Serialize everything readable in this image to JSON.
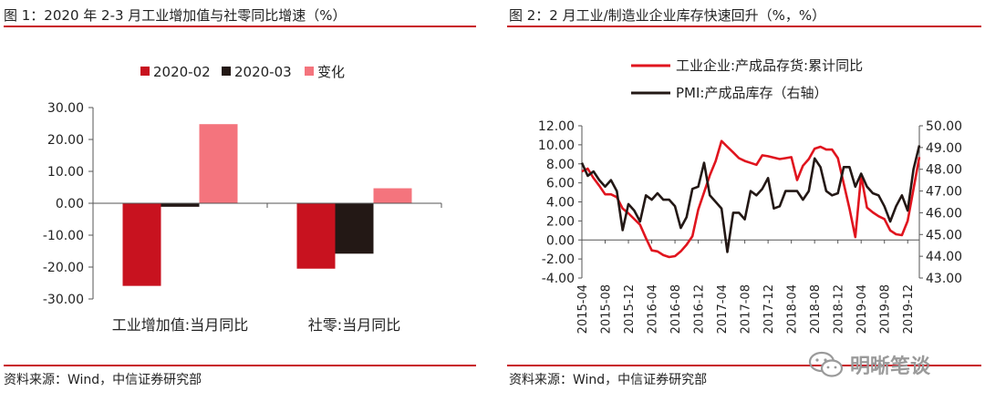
{
  "chart_data": [
    {
      "type": "bar",
      "title": "图 1：2020 年 2-3 月工业增加值与社零同比增速（%）",
      "source": "资料来源：Wind，中信证券研究部",
      "categories": [
        "工业增加值:当月同比",
        "社零:当月同比"
      ],
      "series": [
        {
          "name": "2020-02",
          "color": "#c8121f",
          "values": [
            -25.9,
            -20.5
          ]
        },
        {
          "name": "2020-03",
          "color": "#231815",
          "values": [
            -1.1,
            -15.8
          ]
        },
        {
          "name": "变化",
          "color": "#f4747d",
          "values": [
            24.8,
            4.7
          ]
        }
      ],
      "ylim": [
        -30,
        30
      ],
      "yticks": [
        "30.00",
        "20.00",
        "10.00",
        "0.00",
        "-10.00",
        "-20.00",
        "-30.00"
      ],
      "legend": "top"
    },
    {
      "type": "line",
      "title": "图 2：2 月工业/制造业企业库存快速回升（%，%）",
      "source": "资料来源：Wind，中信证券研究部",
      "xticks": [
        "2015-04",
        "2015-08",
        "2015-12",
        "2016-04",
        "2016-08",
        "2016-12",
        "2017-04",
        "2017-08",
        "2017-12",
        "2018-04",
        "2018-08",
        "2018-12",
        "2019-04",
        "2019-08",
        "2019-12"
      ],
      "ylim_left": [
        -4,
        12
      ],
      "yticks_left": [
        "12.00",
        "10.00",
        "8.00",
        "6.00",
        "4.00",
        "2.00",
        "0.00",
        "-2.00",
        "-4.00"
      ],
      "ylim_right": [
        43,
        50
      ],
      "yticks_right": [
        "50.00",
        "49.00",
        "48.00",
        "47.00",
        "46.00",
        "45.00",
        "44.00",
        "43.00"
      ],
      "legend": "top-left",
      "series": [
        {
          "name": "工业企业:产成品存货:累计同比",
          "color": "#e0141e",
          "axis": "left",
          "x": [
            "2015-04",
            "2015-05",
            "2015-06",
            "2015-07",
            "2015-08",
            "2015-09",
            "2015-10",
            "2015-11",
            "2015-12",
            "2016-02",
            "2016-03",
            "2016-04",
            "2016-05",
            "2016-06",
            "2016-07",
            "2016-08",
            "2016-09",
            "2016-10",
            "2016-11",
            "2016-12",
            "2017-02",
            "2017-03",
            "2017-04",
            "2017-05",
            "2017-06",
            "2017-07",
            "2017-08",
            "2017-09",
            "2017-10",
            "2017-11",
            "2017-12",
            "2018-02",
            "2018-03",
            "2018-04",
            "2018-05",
            "2018-06",
            "2018-07",
            "2018-08",
            "2018-09",
            "2018-10",
            "2018-11",
            "2018-12",
            "2019-02",
            "2019-03",
            "2019-04",
            "2019-05",
            "2019-06",
            "2019-07",
            "2019-08",
            "2019-09",
            "2019-10",
            "2019-11",
            "2019-12",
            "2020-02"
          ],
          "values": [
            7.2,
            7.5,
            6.5,
            5.7,
            4.8,
            4.8,
            4.5,
            3.3,
            2.8,
            1.6,
            0.2,
            -1.1,
            -1.2,
            -1.6,
            -1.8,
            -1.7,
            -1.2,
            -0.5,
            0.4,
            3.2,
            6.8,
            8.3,
            10.4,
            9.8,
            9.2,
            8.6,
            8.3,
            8.1,
            7.9,
            8.9,
            8.8,
            8.5,
            8.6,
            8.7,
            6.3,
            7.8,
            8.5,
            9.6,
            9.8,
            9.5,
            9.5,
            8.6,
            3.3,
            0.3,
            6.8,
            3.4,
            2.9,
            2.5,
            2.2,
            1.0,
            0.6,
            0.5,
            2.0,
            8.7
          ]
        },
        {
          "name": "PMI:产成品库存（右轴）",
          "color": "#231815",
          "axis": "right",
          "x": [
            "2015-04",
            "2015-05",
            "2015-06",
            "2015-07",
            "2015-08",
            "2015-09",
            "2015-10",
            "2015-11",
            "2015-12",
            "2016-01",
            "2016-02",
            "2016-03",
            "2016-04",
            "2016-05",
            "2016-06",
            "2016-07",
            "2016-08",
            "2016-09",
            "2016-10",
            "2016-11",
            "2016-12",
            "2017-01",
            "2017-02",
            "2017-03",
            "2017-04",
            "2017-05",
            "2017-06",
            "2017-07",
            "2017-08",
            "2017-09",
            "2017-10",
            "2017-11",
            "2017-12",
            "2018-01",
            "2018-02",
            "2018-03",
            "2018-04",
            "2018-05",
            "2018-06",
            "2018-07",
            "2018-08",
            "2018-09",
            "2018-10",
            "2018-11",
            "2018-12",
            "2019-01",
            "2019-02",
            "2019-03",
            "2019-04",
            "2019-05",
            "2019-06",
            "2019-07",
            "2019-08",
            "2019-09",
            "2019-10",
            "2019-11",
            "2019-12",
            "2020-01",
            "2020-02"
          ],
          "values": [
            48.3,
            47.7,
            47.9,
            47.5,
            47.2,
            47.5,
            47.0,
            45.2,
            46.4,
            46.1,
            45.6,
            46.8,
            46.6,
            46.9,
            46.6,
            46.6,
            46.3,
            45.3,
            45.8,
            47.1,
            47.2,
            48.3,
            46.8,
            46.5,
            46.2,
            44.2,
            46.0,
            46.0,
            45.7,
            47.0,
            46.8,
            47.1,
            47.6,
            46.2,
            46.3,
            47.0,
            47.0,
            47.0,
            46.6,
            47.0,
            48.5,
            48.1,
            47.0,
            46.8,
            46.9,
            48.1,
            48.1,
            47.2,
            47.8,
            47.2,
            46.9,
            46.8,
            46.3,
            45.6,
            46.3,
            46.8,
            46.1,
            48.0,
            49.1
          ]
        }
      ]
    }
  ],
  "watermark": {
    "text": "明晰笔谈",
    "icon": "wechat-icon"
  }
}
